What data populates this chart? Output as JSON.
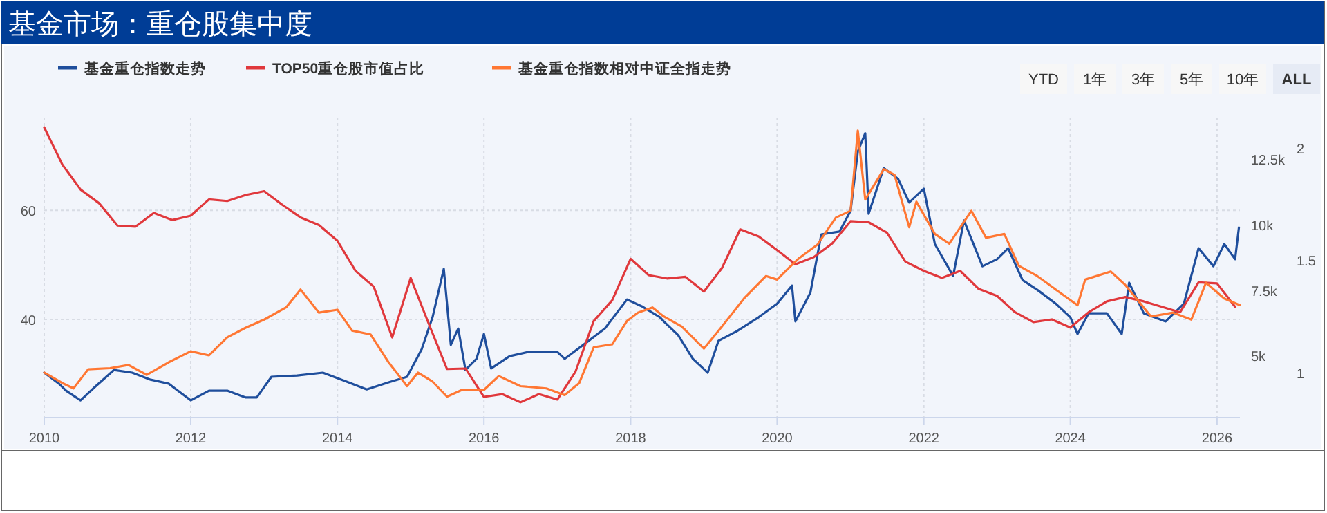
{
  "chart_data": {
    "type": "line",
    "title": "基金市场：重仓股集中度",
    "annotations": [
      "YTD",
      "1年",
      "3年",
      "5年",
      "10年",
      "ALL"
    ],
    "legend": "top left",
    "grid": true,
    "xlim": [
      "2010-01-01",
      "2026-04-25"
    ],
    "xticks": [
      {
        "value": "2010",
        "label": "2010"
      },
      {
        "value": "2012",
        "label": "2012"
      },
      {
        "value": "2014",
        "label": "2014"
      },
      {
        "value": "2016",
        "label": "2016"
      },
      {
        "value": "2018",
        "label": "2018"
      },
      {
        "value": "2020",
        "label": "2020"
      },
      {
        "value": "2022",
        "label": "2022"
      },
      {
        "value": "2024",
        "label": "2024"
      },
      {
        "value": "2026",
        "label": "2026"
      }
    ],
    "ylim": [
      22,
      77
    ],
    "yticks": [
      40,
      60
    ],
    "y2lim": [
      2620,
      14100
    ],
    "y2ticks": [
      {
        "value": 5000,
        "label": "5k"
      },
      {
        "value": 7500,
        "label": "7.5k"
      },
      {
        "value": 10000,
        "label": "10k"
      },
      {
        "value": 12500,
        "label": "12.5k"
      }
    ],
    "y3lim": [
      0.8,
      2.135
    ],
    "y3ticks": [
      1,
      1.5,
      2
    ],
    "series": [
      {
        "name": "基金重仓指数走势",
        "color": "#1f4e9c",
        "axis": "y2",
        "x": [
          "2010-01-01",
          "2010-03-15",
          "2010-04-20",
          "2010-07-01",
          "2010-09-13",
          "2010-12-14",
          "2011-03-15",
          "2011-06-15",
          "2011-09-13",
          "2012-01-01",
          "2012-04-01",
          "2012-07-01",
          "2012-10-01",
          "2012-11-25",
          "2013-02-06",
          "2013-06-15",
          "2013-10-20",
          "2014-02-25",
          "2014-05-27",
          "2014-09-13",
          "2014-12-14",
          "2015-02-25",
          "2015-04-20",
          "2015-06-15",
          "2015-07-20",
          "2015-08-26",
          "2015-10-01",
          "2015-11-25",
          "2016-01-01",
          "2016-02-06",
          "2016-05-08",
          "2016-08-08",
          "2017-01-01",
          "2017-02-06",
          "2017-05-27",
          "2017-08-26",
          "2017-12-14",
          "2018-02-25",
          "2018-05-27",
          "2018-06-15",
          "2018-08-26",
          "2018-11-07",
          "2019-01-20",
          "2019-03-15",
          "2019-06-15",
          "2019-10-01",
          "2020-01-01",
          "2020-03-15",
          "2020-04-01",
          "2020-06-15",
          "2020-08-08",
          "2020-11-07",
          "2021-01-01",
          "2021-02-06",
          "2021-03-15",
          "2021-04-01",
          "2021-06-15",
          "2021-08-26",
          "2021-10-20",
          "2022-01-01",
          "2022-02-25",
          "2022-05-27",
          "2022-07-20",
          "2022-10-20",
          "2023-01-01",
          "2023-02-25",
          "2023-05-08",
          "2023-07-20",
          "2023-10-20",
          "2024-01-01",
          "2024-02-06",
          "2024-04-01",
          "2024-07-01",
          "2024-09-13",
          "2024-10-20",
          "2025-01-01",
          "2025-04-20",
          "2025-07-20",
          "2025-10-01",
          "2025-12-14",
          "2026-02-06",
          "2026-04-01",
          "2026-04-20"
        ],
        "values": [
          4340,
          3920,
          3650,
          3280,
          3810,
          4440,
          4340,
          4070,
          3920,
          3280,
          3650,
          3650,
          3390,
          3390,
          4180,
          4230,
          4340,
          3970,
          3700,
          3970,
          4180,
          5240,
          6460,
          8310,
          5400,
          6030,
          4440,
          4870,
          5820,
          4500,
          4970,
          5130,
          5130,
          4870,
          5500,
          6030,
          7140,
          6880,
          6460,
          6300,
          5770,
          4870,
          4340,
          5560,
          5930,
          6460,
          6980,
          7670,
          6300,
          7410,
          9630,
          9740,
          10530,
          12800,
          13500,
          10420,
          12170,
          11750,
          10850,
          11380,
          9260,
          8040,
          10160,
          8410,
          8680,
          9100,
          7880,
          7510,
          6980,
          6460,
          5820,
          6610,
          6610,
          5820,
          7780,
          6610,
          6300,
          6980,
          9100,
          8410,
          9260,
          8680,
          9890
        ]
      },
      {
        "name": "TOP50重仓股市值占比",
        "color": "#e0383c",
        "x": [
          "2010-01-01",
          "2010-04-01",
          "2010-07-01",
          "2010-10-01",
          "2011-01-01",
          "2011-04-01",
          "2011-07-01",
          "2011-10-01",
          "2012-01-01",
          "2012-04-01",
          "2012-07-01",
          "2012-10-01",
          "2013-01-01",
          "2013-04-01",
          "2013-07-01",
          "2013-10-01",
          "2014-01-01",
          "2014-04-01",
          "2014-07-01",
          "2014-10-01",
          "2015-01-01",
          "2015-04-01",
          "2015-07-01",
          "2015-10-01",
          "2016-01-01",
          "2016-04-01",
          "2016-07-01",
          "2016-10-01",
          "2017-01-01",
          "2017-04-01",
          "2017-07-01",
          "2017-10-01",
          "2018-01-01",
          "2018-04-01",
          "2018-07-01",
          "2018-10-01",
          "2019-01-01",
          "2019-04-01",
          "2019-07-01",
          "2019-10-01",
          "2020-01-01",
          "2020-04-01",
          "2020-07-01",
          "2020-10-01",
          "2021-01-01",
          "2021-04-01",
          "2021-07-01",
          "2021-10-01",
          "2022-01-01",
          "2022-04-01",
          "2022-07-01",
          "2022-10-01",
          "2023-01-01",
          "2023-04-01",
          "2023-07-01",
          "2023-10-01",
          "2024-01-01",
          "2024-04-01",
          "2024-07-01",
          "2024-10-01",
          "2025-01-01",
          "2025-04-01",
          "2025-07-01",
          "2025-10-01",
          "2026-01-01",
          "2026-04-01"
        ],
        "values": [
          75.2,
          68.4,
          63.8,
          61.3,
          57.2,
          57.0,
          59.5,
          58.2,
          59.0,
          62.0,
          61.7,
          62.8,
          63.5,
          61.0,
          58.7,
          57.3,
          54.4,
          48.9,
          46.0,
          36.7,
          47.6,
          39.2,
          30.9,
          31.0,
          25.8,
          26.3,
          24.8,
          26.3,
          25.3,
          30.4,
          39.7,
          43.5,
          51.1,
          48.1,
          47.5,
          47.8,
          45.1,
          49.4,
          56.5,
          55.2,
          52.7,
          50.1,
          51.4,
          53.9,
          58.0,
          57.8,
          55.9,
          50.6,
          48.9,
          47.6,
          48.9,
          45.6,
          44.3,
          41.3,
          39.5,
          40.0,
          38.5,
          41.3,
          43.3,
          44.1,
          43.3,
          42.3,
          41.3,
          46.8,
          46.6,
          42.3
        ]
      },
      {
        "name": "基金重仓指数相对中证全指走势",
        "color": "#ff7733",
        "axis": "y3",
        "x": [
          "2010-01-01",
          "2010-04-01",
          "2010-05-27",
          "2010-08-08",
          "2010-11-25",
          "2011-02-25",
          "2011-05-27",
          "2011-09-13",
          "2012-01-01",
          "2012-04-01",
          "2012-07-01",
          "2012-10-01",
          "2013-01-01",
          "2013-04-20",
          "2013-07-01",
          "2013-10-01",
          "2014-01-01",
          "2014-03-15",
          "2014-06-15",
          "2014-09-13",
          "2014-12-14",
          "2015-02-06",
          "2015-04-20",
          "2015-07-01",
          "2015-09-13",
          "2016-01-01",
          "2016-03-15",
          "2016-07-01",
          "2016-11-07",
          "2017-02-06",
          "2017-04-20",
          "2017-07-01",
          "2017-10-01",
          "2017-12-14",
          "2018-02-06",
          "2018-04-20",
          "2018-06-15",
          "2018-09-13",
          "2019-01-01",
          "2019-04-01",
          "2019-07-20",
          "2019-11-07",
          "2020-01-01",
          "2020-02-25",
          "2020-04-20",
          "2020-07-20",
          "2020-10-20",
          "2021-01-01",
          "2021-02-06",
          "2021-03-15",
          "2021-06-15",
          "2021-08-08",
          "2021-10-20",
          "2021-11-25",
          "2022-02-25",
          "2022-05-08",
          "2022-08-26",
          "2022-11-07",
          "2023-02-06",
          "2023-04-20",
          "2023-07-20",
          "2023-10-20",
          "2024-02-06",
          "2024-03-15",
          "2024-07-20",
          "2024-10-01",
          "2024-11-25",
          "2025-02-06",
          "2025-05-27",
          "2025-08-26",
          "2025-11-07",
          "2026-02-06",
          "2026-04-25"
        ],
        "values": [
          1.0,
          0.954,
          0.93,
          1.015,
          1.02,
          1.034,
          0.99,
          1.046,
          1.095,
          1.077,
          1.157,
          1.2,
          1.236,
          1.29,
          1.37,
          1.267,
          1.28,
          1.187,
          1.17,
          1.046,
          0.94,
          1.0,
          0.96,
          0.893,
          0.923,
          0.923,
          0.985,
          0.94,
          0.93,
          0.9,
          0.954,
          1.113,
          1.126,
          1.23,
          1.267,
          1.29,
          1.25,
          1.205,
          1.107,
          1.205,
          1.33,
          1.43,
          1.414,
          1.463,
          1.51,
          1.57,
          1.69,
          1.72,
          2.077,
          1.77,
          1.905,
          1.88,
          1.647,
          1.76,
          1.617,
          1.574,
          1.72,
          1.6,
          1.617,
          1.475,
          1.43,
          1.37,
          1.3,
          1.414,
          1.45,
          1.39,
          1.33,
          1.25,
          1.267,
          1.236,
          1.4,
          1.33,
          1.3
        ]
      }
    ]
  }
}
